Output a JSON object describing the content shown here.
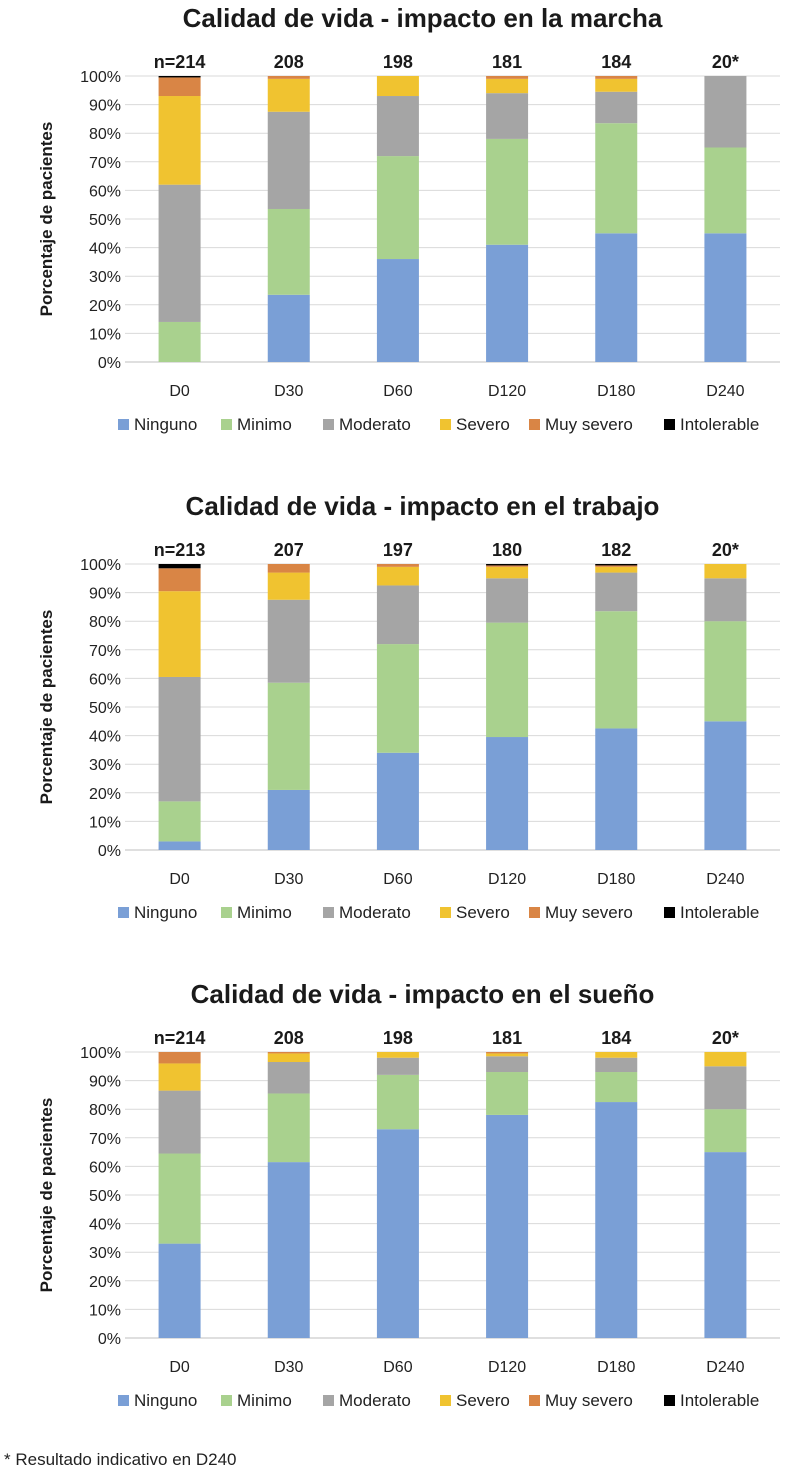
{
  "footnote": "* Resultado indicativo en D240",
  "colors": {
    "Ninguno": "#7a9fd6",
    "Minimo": "#a9d18e",
    "Moderato": "#a5a5a5",
    "Severo": "#f0c330",
    "Muy severo": "#d98545",
    "Intolerable": "#000000",
    "grid": "#d9d9d9",
    "axis": "#bfbfbf"
  },
  "chart_data": [
    {
      "type": "bar",
      "stacked": true,
      "title": "Calidad de vida - impacto en la marcha",
      "ylabel": "Porcentaje de pacientes",
      "xlabel": "",
      "ylim": [
        0,
        100
      ],
      "yticks": [
        "0%",
        "10%",
        "20%",
        "30%",
        "40%",
        "50%",
        "60%",
        "70%",
        "80%",
        "90%",
        "100%"
      ],
      "categories": [
        "D0",
        "D30",
        "D60",
        "D120",
        "D180",
        "D240"
      ],
      "n_labels": [
        "n=214",
        "208",
        "198",
        "181",
        "184",
        "20*"
      ],
      "legend": [
        "Ninguno",
        "Minimo",
        "Moderato",
        "Severo",
        "Muy severo",
        "Intolerable"
      ],
      "series": [
        {
          "name": "Ninguno",
          "values": [
            0,
            23.5,
            36,
            41,
            45,
            45
          ]
        },
        {
          "name": "Minimo",
          "values": [
            14,
            30,
            36,
            37,
            38.5,
            30
          ]
        },
        {
          "name": "Moderato",
          "values": [
            48,
            34,
            21,
            16,
            11,
            25
          ]
        },
        {
          "name": "Severo",
          "values": [
            31,
            11.5,
            7,
            5,
            4.5,
            0
          ]
        },
        {
          "name": "Muy severo",
          "values": [
            6.5,
            1,
            0,
            1,
            1,
            0
          ]
        },
        {
          "name": "Intolerable",
          "values": [
            0.5,
            0,
            0,
            0,
            0,
            0
          ]
        }
      ]
    },
    {
      "type": "bar",
      "stacked": true,
      "title": "Calidad de vida - impacto en el trabajo",
      "ylabel": "Porcentaje de pacientes",
      "xlabel": "",
      "ylim": [
        0,
        100
      ],
      "yticks": [
        "0%",
        "10%",
        "20%",
        "30%",
        "40%",
        "50%",
        "60%",
        "70%",
        "80%",
        "90%",
        "100%"
      ],
      "categories": [
        "D0",
        "D30",
        "D60",
        "D120",
        "D180",
        "D240"
      ],
      "n_labels": [
        "n=213",
        "207",
        "197",
        "180",
        "182",
        "20*"
      ],
      "legend": [
        "Ninguno",
        "Minimo",
        "Moderato",
        "Severo",
        "Muy severo",
        "Intolerable"
      ],
      "series": [
        {
          "name": "Ninguno",
          "values": [
            3,
            21,
            34,
            39.5,
            42.5,
            45
          ]
        },
        {
          "name": "Minimo",
          "values": [
            14,
            37.5,
            38,
            40,
            41,
            35
          ]
        },
        {
          "name": "Moderato",
          "values": [
            43.5,
            29,
            20.5,
            15.5,
            13.5,
            15
          ]
        },
        {
          "name": "Severo",
          "values": [
            30,
            9.5,
            6.5,
            4,
            2,
            5
          ]
        },
        {
          "name": "Muy severo",
          "values": [
            8,
            3,
            1,
            0.5,
            0.5,
            0
          ]
        },
        {
          "name": "Intolerable",
          "values": [
            1.5,
            0,
            0,
            0.5,
            0.5,
            0
          ]
        }
      ]
    },
    {
      "type": "bar",
      "stacked": true,
      "title": "Calidad de vida - impacto en el sueño",
      "ylabel": "Porcentaje de pacientes",
      "xlabel": "",
      "ylim": [
        0,
        100
      ],
      "yticks": [
        "0%",
        "10%",
        "20%",
        "30%",
        "40%",
        "50%",
        "60%",
        "70%",
        "80%",
        "90%",
        "100%"
      ],
      "categories": [
        "D0",
        "D30",
        "D60",
        "D120",
        "D180",
        "D240"
      ],
      "n_labels": [
        "n=214",
        "208",
        "198",
        "181",
        "184",
        "20*"
      ],
      "legend": [
        "Ninguno",
        "Minimo",
        "Moderato",
        "Severo",
        "Muy severo",
        "Intolerable"
      ],
      "series": [
        {
          "name": "Ninguno",
          "values": [
            33,
            61.5,
            73,
            78,
            82.5,
            65
          ]
        },
        {
          "name": "Minimo",
          "values": [
            31.5,
            24,
            19,
            15,
            10.5,
            15
          ]
        },
        {
          "name": "Moderato",
          "values": [
            22,
            11,
            6,
            5.5,
            5,
            15
          ]
        },
        {
          "name": "Severo",
          "values": [
            9.5,
            3,
            2,
            1,
            2,
            5
          ]
        },
        {
          "name": "Muy severo",
          "values": [
            4,
            0.5,
            0,
            0.5,
            0,
            0
          ]
        },
        {
          "name": "Intolerable",
          "values": [
            0,
            0,
            0,
            0,
            0,
            0
          ]
        }
      ]
    }
  ]
}
